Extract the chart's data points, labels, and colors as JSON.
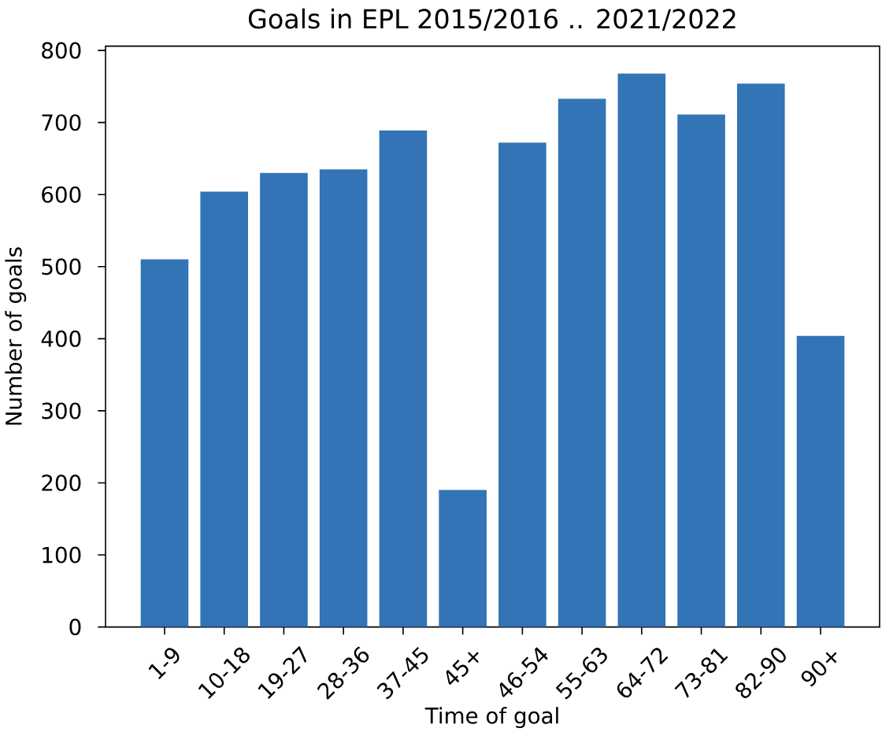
{
  "chart_data": {
    "type": "bar",
    "title": "Goals in EPL 2015/2016 .. 2021/2022",
    "xlabel": "Time of goal",
    "ylabel": "Number of goals",
    "categories": [
      "1-9",
      "10-18",
      "19-27",
      "28-36",
      "37-45",
      "45+",
      "46-54",
      "55-63",
      "64-72",
      "73-81",
      "82-90",
      "90+"
    ],
    "values": [
      510,
      604,
      630,
      635,
      689,
      190,
      672,
      733,
      768,
      711,
      754,
      404
    ],
    "color": "#3274b5",
    "ylim": [
      0,
      806
    ],
    "yticks": [
      0,
      100,
      200,
      300,
      400,
      500,
      600,
      700,
      800
    ]
  }
}
